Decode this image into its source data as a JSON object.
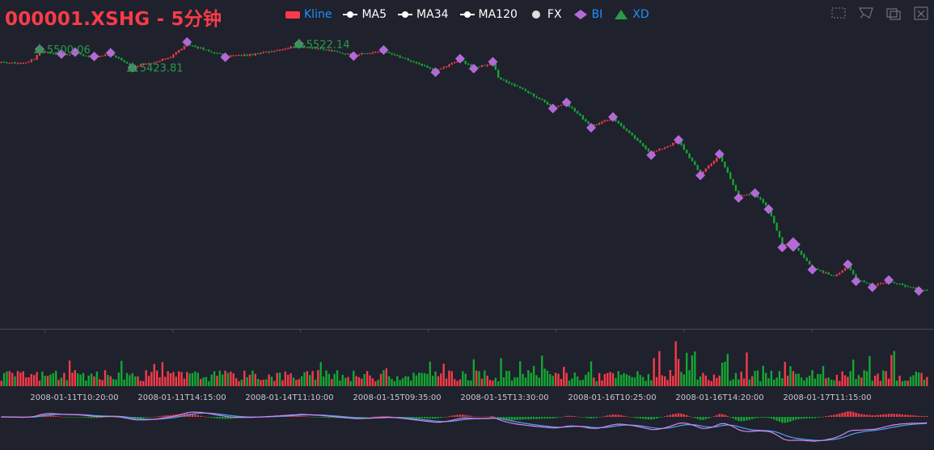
{
  "title": "000001.XSHG - 5分钟",
  "legend": [
    {
      "name": "Kline",
      "color": "#f93b49",
      "shape": "rect",
      "text_color": "#1e90ff"
    },
    {
      "name": "MA5",
      "color": "#ffffff",
      "shape": "line-dot",
      "text_color": "#ffffff"
    },
    {
      "name": "MA34",
      "color": "#ffffff",
      "shape": "line-dot",
      "text_color": "#ffffff"
    },
    {
      "name": "MA120",
      "color": "#ffffff",
      "shape": "line-dot",
      "text_color": "#ffffff"
    },
    {
      "name": "FX",
      "color": "#dddddd",
      "shape": "circle",
      "text_color": "#ffffff"
    },
    {
      "name": "BI",
      "color": "#b36ad6",
      "shape": "diamond",
      "text_color": "#1e90ff"
    },
    {
      "name": "XD",
      "color": "#2a9a48",
      "shape": "triangle",
      "text_color": "#1e90ff"
    }
  ],
  "toolbox": [
    "zoom-icon",
    "zoom-reset-icon",
    "data-view-icon",
    "restore-icon"
  ],
  "colors": {
    "background": "#1f212d",
    "up": "#f93b49",
    "down": "#14a832",
    "bi": "#b36ad6",
    "xd": "#2a9a48",
    "dif": "#d984e8",
    "dea": "#4aa3f0",
    "axis": "#464a5a"
  },
  "chart_data": {
    "type": "candlestick",
    "symbol": "000001.XSHG",
    "interval": "5分钟",
    "x_tick_labels": [
      "2008-01-11T10:20:00",
      "2008-01-11T14:15:00",
      "2008-01-14T11:10:00",
      "2008-01-15T09:35:00",
      "2008-01-15T13:30:00",
      "2008-01-16T10:25:00",
      "2008-01-16T14:20:00",
      "2008-01-17T11:15:00"
    ],
    "price_labels": [
      {
        "text": "5500.06",
        "index": 14,
        "price": 5500.06
      },
      {
        "text": "5423.81",
        "index": 48,
        "price": 5423.81
      },
      {
        "text": "5522.14",
        "index": 109,
        "price": 5522.14
      }
    ],
    "xd_points": [
      {
        "index": 14,
        "price": 5500.06
      },
      {
        "index": 48,
        "price": 5423.81
      },
      {
        "index": 109,
        "price": 5522.14
      }
    ],
    "bi_points": [
      {
        "index": 14,
        "price": 5500.06
      },
      {
        "index": 22,
        "price": 5480
      },
      {
        "index": 27,
        "price": 5488
      },
      {
        "index": 34,
        "price": 5470
      },
      {
        "index": 40,
        "price": 5485
      },
      {
        "index": 48,
        "price": 5423.81
      },
      {
        "index": 68,
        "price": 5530
      },
      {
        "index": 82,
        "price": 5467
      },
      {
        "index": 109,
        "price": 5522.14
      },
      {
        "index": 129,
        "price": 5472
      },
      {
        "index": 140,
        "price": 5497
      },
      {
        "index": 159,
        "price": 5405
      },
      {
        "index": 168,
        "price": 5461
      },
      {
        "index": 173,
        "price": 5420
      },
      {
        "index": 180,
        "price": 5448
      },
      {
        "index": 202,
        "price": 5255
      },
      {
        "index": 207,
        "price": 5280
      },
      {
        "index": 216,
        "price": 5175
      },
      {
        "index": 224,
        "price": 5220
      },
      {
        "index": 238,
        "price": 5062
      },
      {
        "index": 248,
        "price": 5125
      },
      {
        "index": 256,
        "price": 4978
      },
      {
        "index": 263,
        "price": 5066
      },
      {
        "index": 270,
        "price": 4885
      },
      {
        "index": 276,
        "price": 4905
      },
      {
        "index": 281,
        "price": 4838
      },
      {
        "index": 286,
        "price": 4680
      },
      {
        "index": 290,
        "price": 4692
      },
      {
        "index": 297,
        "price": 4588
      },
      {
        "index": 310,
        "price": 4610
      },
      {
        "index": 313,
        "price": 4540
      },
      {
        "index": 319,
        "price": 4515
      },
      {
        "index": 325,
        "price": 4545
      },
      {
        "index": 336,
        "price": 4500
      }
    ],
    "price_path": [
      [
        0,
        5445
      ],
      [
        8,
        5442
      ],
      [
        12,
        5460
      ],
      [
        14,
        5495
      ],
      [
        22,
        5475
      ],
      [
        27,
        5483
      ],
      [
        34,
        5465
      ],
      [
        40,
        5480
      ],
      [
        48,
        5430
      ],
      [
        55,
        5440
      ],
      [
        62,
        5470
      ],
      [
        68,
        5520
      ],
      [
        82,
        5472
      ],
      [
        92,
        5478
      ],
      [
        100,
        5495
      ],
      [
        109,
        5515
      ],
      [
        120,
        5495
      ],
      [
        129,
        5476
      ],
      [
        140,
        5492
      ],
      [
        150,
        5450
      ],
      [
        159,
        5410
      ],
      [
        168,
        5456
      ],
      [
        173,
        5424
      ],
      [
        180,
        5444
      ],
      [
        182,
        5380
      ],
      [
        190,
        5340
      ],
      [
        202,
        5262
      ],
      [
        207,
        5275
      ],
      [
        216,
        5182
      ],
      [
        224,
        5214
      ],
      [
        238,
        5070
      ],
      [
        248,
        5120
      ],
      [
        256,
        4985
      ],
      [
        263,
        5060
      ],
      [
        270,
        4893
      ],
      [
        276,
        4900
      ],
      [
        281,
        4845
      ],
      [
        286,
        4688
      ],
      [
        290,
        4695
      ],
      [
        297,
        4596
      ],
      [
        305,
        4560
      ],
      [
        310,
        4605
      ],
      [
        313,
        4548
      ],
      [
        319,
        4520
      ],
      [
        325,
        4540
      ],
      [
        336,
        4505
      ]
    ],
    "n_candles": 340,
    "y_range": [
      4350,
      5570
    ],
    "subplots": [
      "volume",
      "macd"
    ],
    "macd_series": [
      "DIF",
      "DEA",
      "MACD"
    ]
  }
}
